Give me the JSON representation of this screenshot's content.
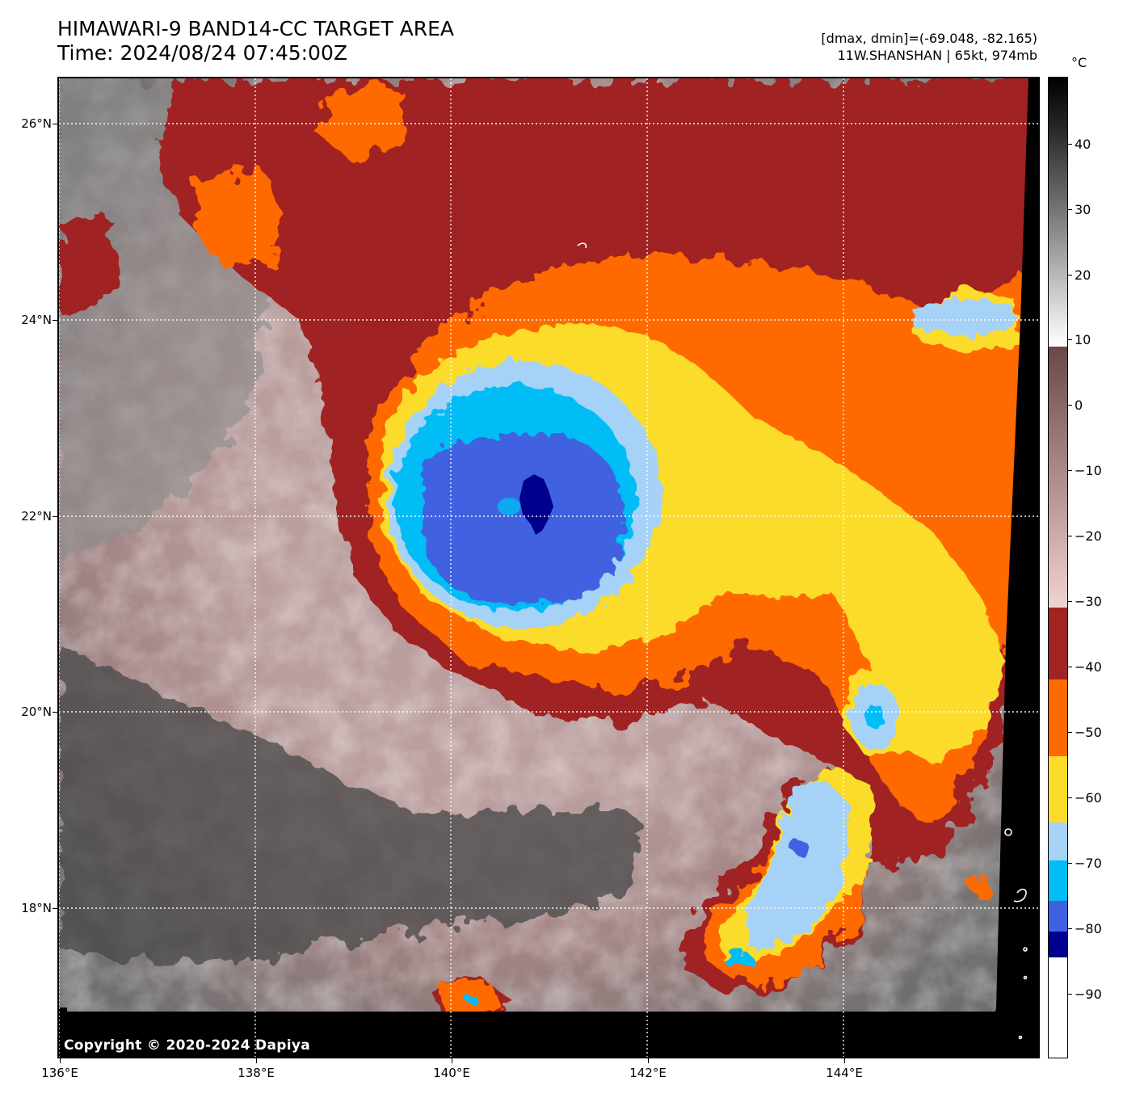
{
  "title": {
    "line1": "HIMAWARI-9 BAND14-CC TARGET AREA",
    "line2": "Time: 2024/08/24 07:45:00Z"
  },
  "meta": {
    "line1": "[dmax, dmin]=(-69.048, -82.165)",
    "line2": "11W.SHANSHAN | 65kt, 974mb"
  },
  "copyright": "Copyright © 2020-2024 Dapiya",
  "axes": {
    "lat_ticks": [
      "26°N",
      "24°N",
      "22°N",
      "20°N",
      "18°N"
    ],
    "lon_ticks": [
      "136°E",
      "138°E",
      "140°E",
      "142°E",
      "144°E"
    ],
    "lat_range": [
      16.5,
      26.5
    ],
    "lon_range": [
      136,
      146
    ]
  },
  "storm": {
    "name": "11W.SHANSHAN",
    "center_lat": 22.15,
    "center_lon": 140.9
  },
  "colorbar": {
    "unit": "°C",
    "tick_labels": [
      "40",
      "30",
      "20",
      "10",
      "0",
      "−10",
      "−20",
      "−30",
      "−40",
      "−50",
      "−60",
      "−70",
      "−80",
      "−90"
    ],
    "tick_values": [
      40,
      30,
      20,
      10,
      0,
      -10,
      -20,
      -30,
      -40,
      -50,
      -60,
      -70,
      -80,
      -90
    ],
    "range": [
      -100,
      50
    ],
    "colors": {
      "dark_red": "#a02424",
      "orange": "#ff6a00",
      "yellow": "#fbdc2a",
      "light_blue": "#a6d2f8",
      "cyan": "#00bdf6",
      "royal_blue": "#4062e0",
      "navy": "#00008f"
    }
  }
}
